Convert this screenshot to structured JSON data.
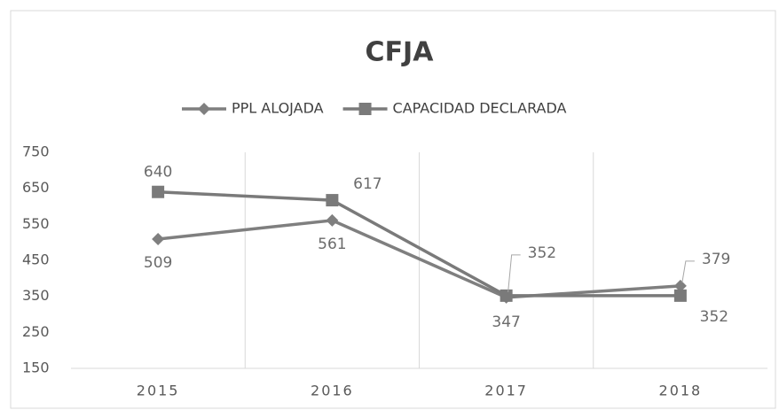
{
  "chart_data": {
    "type": "line",
    "title": "CFJA",
    "categories": [
      "2015",
      "2016",
      "2017",
      "2018"
    ],
    "series": [
      {
        "name": "PPL ALOJADA",
        "color": "#7f7f7f",
        "marker": "diamond",
        "values": [
          509,
          561,
          347,
          379
        ]
      },
      {
        "name": "CAPACIDAD DECLARADA",
        "color": "#7a7a7a",
        "marker": "square",
        "values": [
          640,
          617,
          352,
          352
        ]
      }
    ],
    "ylim": [
      150,
      750
    ],
    "yticks": [
      150,
      250,
      350,
      450,
      550,
      650,
      750
    ],
    "legend": "top"
  }
}
